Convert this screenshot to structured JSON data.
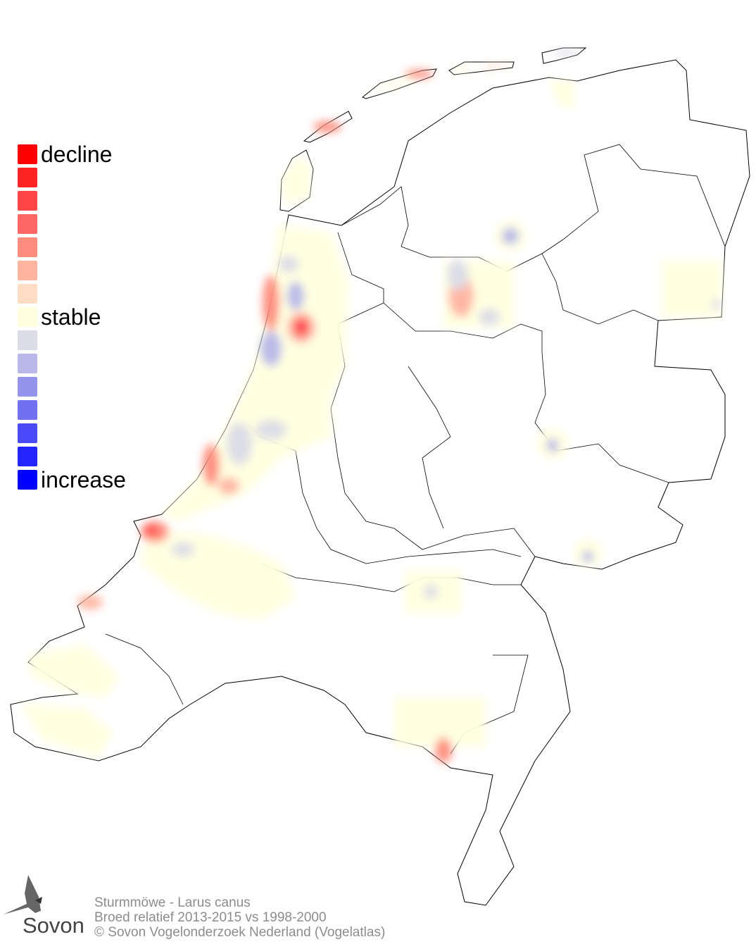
{
  "legend": {
    "labels": {
      "top": "decline",
      "middle": "stable",
      "bottom": "increase"
    },
    "colors": [
      "#ff0000",
      "#ff2424",
      "#ff4646",
      "#ff6666",
      "#ff8c7c",
      "#ffb4a0",
      "#ffdcc4",
      "#ffffe0",
      "#dcdce6",
      "#b8b8e8",
      "#9494ec",
      "#7070f0",
      "#4a4af8",
      "#2424ff",
      "#0000ff"
    ]
  },
  "footer": {
    "species": "Sturmmöwe - Larus canus",
    "period": "Broed relatief 2013-2015 vs 1998-2000",
    "copyright": "© Sovon Vogelonderzoek Nederland (Vogelatlas)"
  },
  "logo": {
    "text": "Sovon",
    "icon": "swallow-icon"
  }
}
